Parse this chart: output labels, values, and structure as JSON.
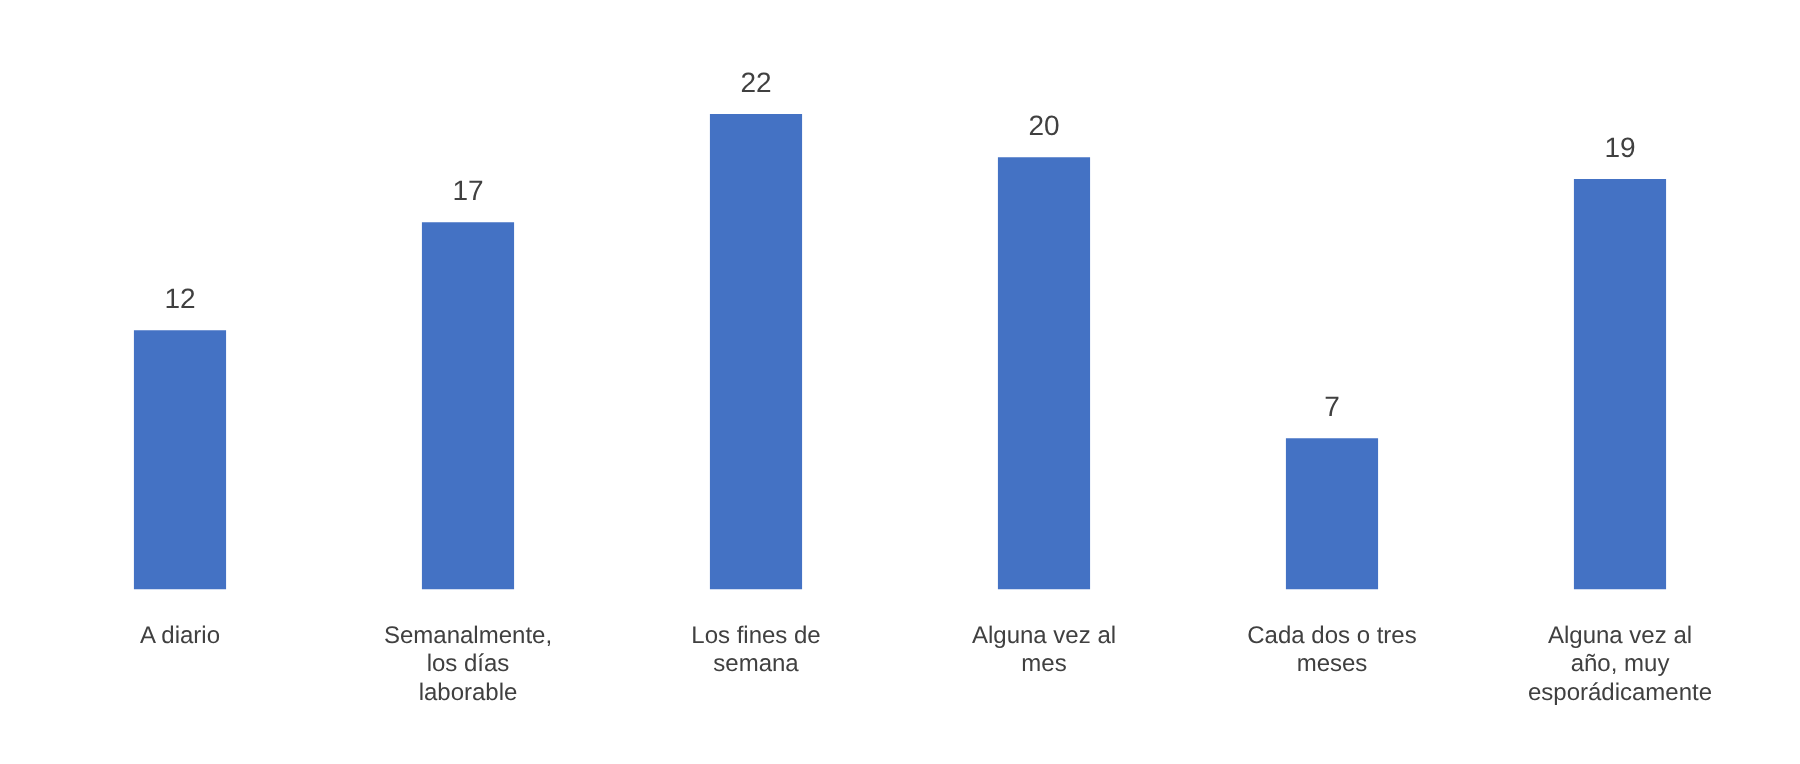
{
  "chart_data": {
    "type": "bar",
    "categories": [
      "A diario",
      "Semanalmente, los días laborable",
      "Los fines de semana",
      "Alguna vez al mes",
      "Cada dos o tres meses",
      "Alguna vez al año, muy esporádicamente"
    ],
    "values": [
      12,
      17,
      22,
      20,
      7,
      19
    ],
    "color": "#4472c4",
    "data_labels": true,
    "grid": false,
    "legend": false
  }
}
